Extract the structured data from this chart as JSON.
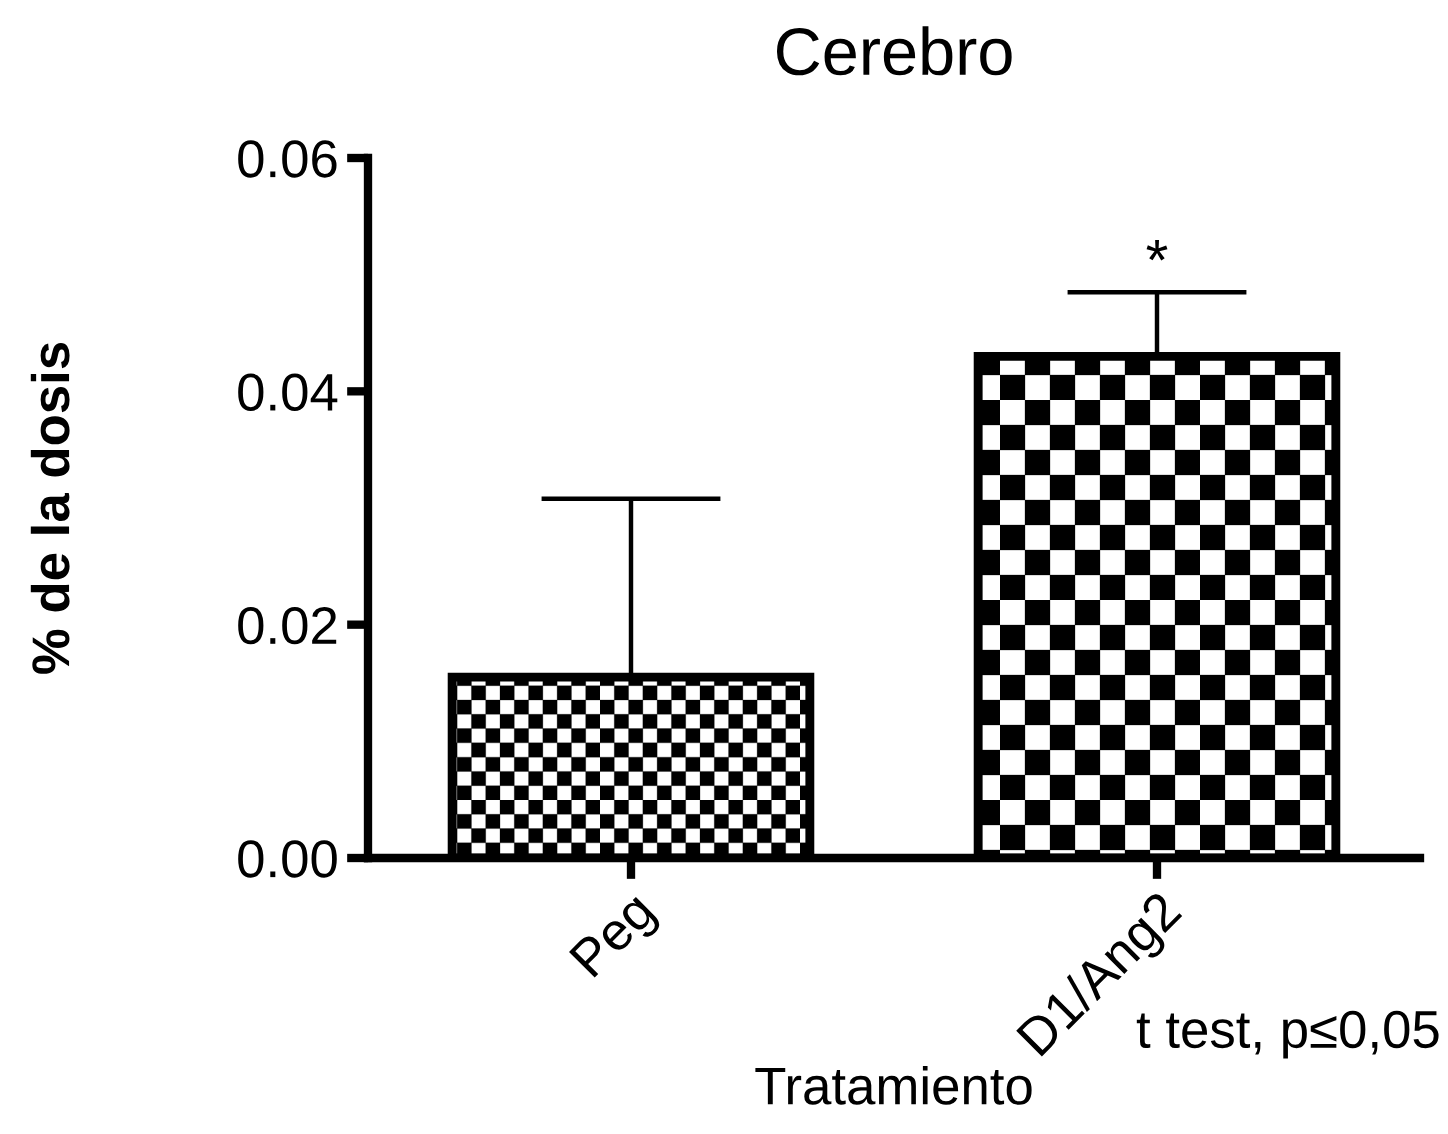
{
  "chart_data": {
    "type": "bar",
    "title": "Cerebro",
    "xlabel": "Tratamiento",
    "ylabel": "% de la dosis",
    "categories": [
      "Peg",
      "D1/Ang2"
    ],
    "values": [
      0.0155,
      0.043
    ],
    "errors": [
      [
        0.0155,
        0.0308
      ],
      [
        0.043,
        0.0485
      ]
    ],
    "color": "#000000",
    "ylim": [
      0,
      0.06
    ],
    "yticks": [
      {
        "value": 0,
        "label": "0.00"
      },
      {
        "value": 0.02,
        "label": "0.02"
      },
      {
        "value": 0.04,
        "label": "0.04"
      },
      {
        "value": 0.06,
        "label": "0.06"
      }
    ],
    "annotations": [
      {
        "text": "*",
        "x": "D1/Ang2",
        "y": 0.0485
      },
      "t test, p≤0,05"
    ]
  }
}
